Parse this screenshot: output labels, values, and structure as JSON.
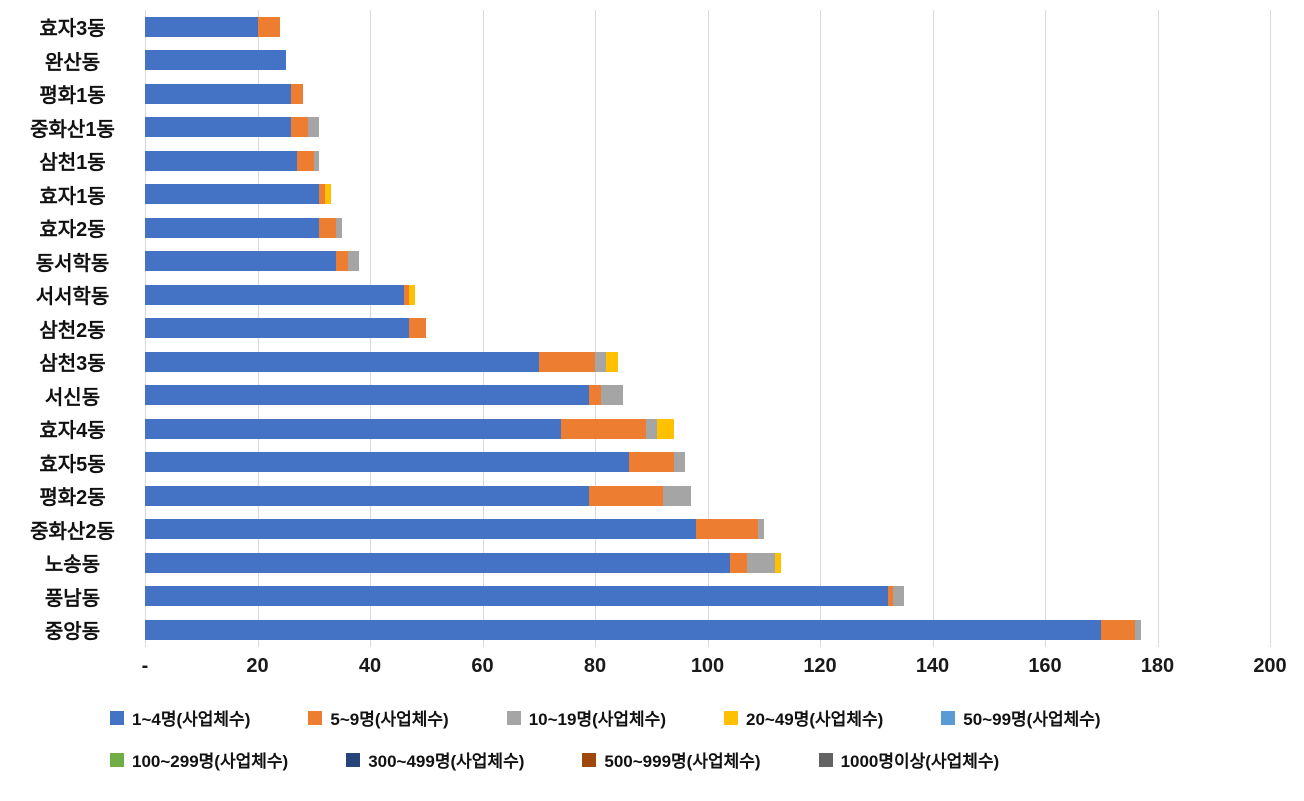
{
  "chart_data": {
    "type": "bar",
    "orientation": "horizontal",
    "stacked": true,
    "grid": true,
    "legend_position": "bottom",
    "xlim": [
      0,
      200
    ],
    "x_ticks": [
      "-",
      "20",
      "40",
      "60",
      "80",
      "100",
      "120",
      "140",
      "160",
      "180",
      "200"
    ],
    "x_tick_values": [
      0,
      20,
      40,
      60,
      80,
      100,
      120,
      140,
      160,
      180,
      200
    ],
    "categories": [
      "효자3동",
      "완산동",
      "평화1동",
      "중화산1동",
      "삼천1동",
      "효자1동",
      "효자2동",
      "동서학동",
      "서서학동",
      "삼천2동",
      "삼천3동",
      "서신동",
      "효자4동",
      "효자5동",
      "평화2동",
      "중화산2동",
      "노송동",
      "풍남동",
      "중앙동"
    ],
    "series": [
      {
        "name": "1~4명(사업체수)",
        "color": "#4472C4",
        "values": [
          20,
          25,
          26,
          26,
          27,
          31,
          31,
          34,
          46,
          47,
          70,
          79,
          74,
          86,
          79,
          98,
          104,
          132,
          170
        ]
      },
      {
        "name": "5~9명(사업체수)",
        "color": "#ED7D31",
        "values": [
          4,
          0,
          2,
          3,
          3,
          1,
          3,
          2,
          1,
          3,
          10,
          2,
          15,
          8,
          13,
          11,
          3,
          1,
          6
        ]
      },
      {
        "name": "10~19명(사업체수)",
        "color": "#A5A5A5",
        "values": [
          0,
          0,
          0,
          2,
          1,
          0,
          1,
          2,
          0,
          0,
          2,
          4,
          2,
          2,
          5,
          1,
          5,
          2,
          1
        ]
      },
      {
        "name": "20~49명(사업체수)",
        "color": "#FFC000",
        "values": [
          0,
          0,
          0,
          0,
          0,
          1,
          0,
          0,
          1,
          0,
          2,
          0,
          3,
          0,
          0,
          0,
          1,
          0,
          0
        ]
      },
      {
        "name": "50~99명(사업체수)",
        "color": "#5B9BD5",
        "values": [
          0,
          0,
          0,
          0,
          0,
          0,
          0,
          0,
          0,
          0,
          0,
          0,
          0,
          0,
          0,
          0,
          0,
          0,
          0
        ]
      },
      {
        "name": "100~299명(사업체수)",
        "color": "#70AD47",
        "values": [
          0,
          0,
          0,
          0,
          0,
          0,
          0,
          0,
          0,
          0,
          0,
          0,
          0,
          0,
          0,
          0,
          0,
          0,
          0
        ]
      },
      {
        "name": "300~499명(사업체수)",
        "color": "#264478",
        "values": [
          0,
          0,
          0,
          0,
          0,
          0,
          0,
          0,
          0,
          0,
          0,
          0,
          0,
          0,
          0,
          0,
          0,
          0,
          0
        ]
      },
      {
        "name": "500~999명(사업체수)",
        "color": "#9E480E",
        "values": [
          0,
          0,
          0,
          0,
          0,
          0,
          0,
          0,
          0,
          0,
          0,
          0,
          0,
          0,
          0,
          0,
          0,
          0,
          0
        ]
      },
      {
        "name": "1000명이상(사업체수)",
        "color": "#636363",
        "values": [
          0,
          0,
          0,
          0,
          0,
          0,
          0,
          0,
          0,
          0,
          0,
          0,
          0,
          0,
          0,
          0,
          0,
          0,
          0
        ]
      }
    ],
    "legend_rows": [
      5,
      4
    ]
  }
}
